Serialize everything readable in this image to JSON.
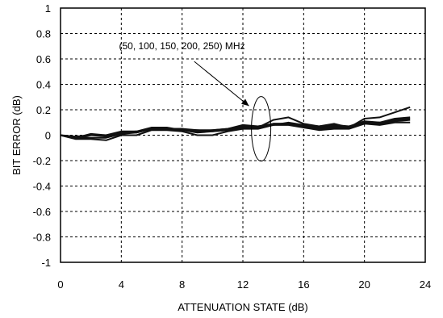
{
  "chart_data": {
    "type": "line",
    "title": "",
    "xlabel": "ATTENUATION STATE (dB)",
    "ylabel": "BIT ERROR (dB)",
    "xlim": [
      0,
      24
    ],
    "ylim": [
      -1,
      1
    ],
    "xticks": [
      0,
      4,
      8,
      12,
      16,
      20,
      24
    ],
    "yticks": [
      1,
      0.8,
      0.6,
      0.4,
      0.2,
      0,
      -0.2,
      -0.4,
      -0.6,
      -0.8,
      -1
    ],
    "x_tick_labels": [
      "0",
      "4",
      "8",
      "12",
      "16",
      "20",
      "24"
    ],
    "y_tick_labels": [
      "1",
      "0.8",
      "0.6",
      "0.4",
      "0.2",
      "0",
      "-0.2",
      "-0.4",
      "-0.6",
      "-0.8",
      "-1"
    ],
    "grid": true,
    "annotation": "(50, 100, 150, 200, 250) MHz",
    "series": [
      {
        "x": [
          0,
          1,
          2,
          3,
          4,
          5,
          6,
          7,
          8,
          9,
          10,
          11,
          12,
          13,
          14,
          15,
          16,
          17,
          18,
          19,
          20,
          21,
          22,
          23
        ],
        "values": [
          0,
          -0.03,
          -0.03,
          -0.04,
          0,
          0,
          0.04,
          0.04,
          0.03,
          0,
          0,
          0.03,
          0.05,
          0.05,
          0.08,
          0.08,
          0.06,
          0.04,
          0.05,
          0.05,
          0.09,
          0.08,
          0.1,
          0.1
        ]
      },
      {
        "x": [
          0,
          1,
          2,
          3,
          4,
          5,
          6,
          7,
          8,
          9,
          10,
          11,
          12,
          13,
          14,
          15,
          16,
          17,
          18,
          19,
          20,
          21,
          22,
          23
        ],
        "values": [
          0,
          -0.02,
          -0.02,
          -0.02,
          0.01,
          0.02,
          0.05,
          0.05,
          0.04,
          0.02,
          0.03,
          0.04,
          0.06,
          0.06,
          0.09,
          0.09,
          0.07,
          0.05,
          0.06,
          0.06,
          0.09,
          0.09,
          0.11,
          0.12
        ]
      },
      {
        "x": [
          0,
          1,
          2,
          3,
          4,
          5,
          6,
          7,
          8,
          9,
          10,
          11,
          12,
          13,
          14,
          15,
          16,
          17,
          18,
          19,
          20,
          21,
          22,
          23
        ],
        "values": [
          0,
          -0.01,
          0,
          -0.01,
          0.02,
          0.03,
          0.05,
          0.05,
          0.05,
          0.03,
          0.04,
          0.05,
          0.07,
          0.07,
          0.08,
          0.1,
          0.08,
          0.06,
          0.07,
          0.07,
          0.1,
          0.1,
          0.12,
          0.13
        ]
      },
      {
        "x": [
          0,
          1,
          2,
          3,
          4,
          5,
          6,
          7,
          8,
          9,
          10,
          11,
          12,
          13,
          14,
          15,
          16,
          17,
          18,
          19,
          20,
          21,
          22,
          23
        ],
        "values": [
          0,
          -0.02,
          0.01,
          0,
          0.03,
          0.03,
          0.06,
          0.06,
          0.04,
          0.04,
          0.04,
          0.05,
          0.08,
          0.07,
          0.09,
          0.09,
          0.08,
          0.07,
          0.08,
          0.07,
          0.11,
          0.1,
          0.13,
          0.14
        ]
      },
      {
        "x": [
          0,
          1,
          2,
          3,
          4,
          5,
          6,
          7,
          8,
          9,
          10,
          11,
          12,
          13,
          14,
          15,
          16,
          17,
          18,
          19,
          20,
          21,
          22,
          23
        ],
        "values": [
          0,
          -0.03,
          0,
          0,
          0.02,
          0.02,
          0.05,
          0.05,
          0.05,
          0.04,
          0.03,
          0.04,
          0.07,
          0.06,
          0.12,
          0.14,
          0.09,
          0.07,
          0.09,
          0.06,
          0.13,
          0.14,
          0.18,
          0.22
        ]
      }
    ]
  }
}
